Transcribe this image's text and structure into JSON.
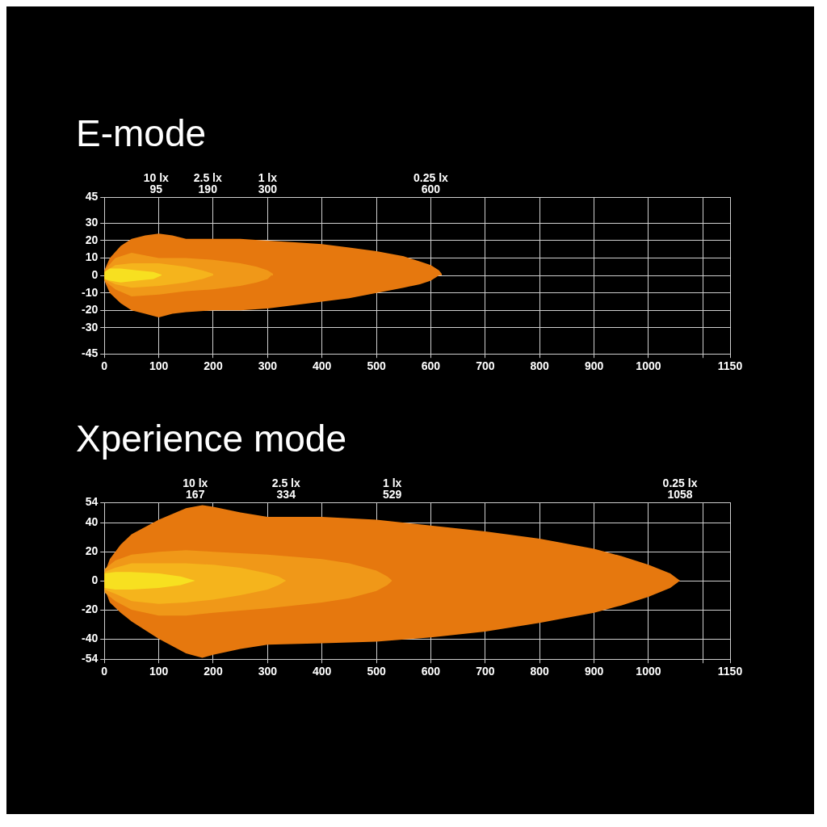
{
  "chart_data": [
    {
      "type": "area",
      "title": "E-mode",
      "xlim": [
        0,
        1150
      ],
      "xticks": [
        0,
        100,
        200,
        300,
        400,
        500,
        600,
        700,
        800,
        900,
        1000,
        {
          "value": 1100,
          "label": null
        },
        1150
      ],
      "ylim": [
        -45,
        45
      ],
      "yticks": [
        -45,
        -30,
        -20,
        -10,
        0,
        10,
        20,
        30,
        45
      ],
      "grid": true,
      "x2lim": [
        0,
        1150
      ],
      "x2ticks": [
        95,
        190,
        300,
        600
      ],
      "annotations": [
        "10 lx",
        "2.5 lx",
        "1 lx",
        "0.25 lx"
      ],
      "series": [
        {
          "color": "#e6780e",
          "x": [
            0,
            10,
            30,
            50,
            75,
            100,
            125,
            150,
            200,
            250,
            300,
            350,
            400,
            450,
            500,
            550,
            580,
            600,
            615,
            620
          ],
          "values": [
            3,
            10,
            17,
            21,
            23,
            24,
            23,
            21,
            21,
            21,
            20,
            19,
            18,
            16,
            14,
            11,
            8,
            6,
            3,
            1
          ]
        },
        {
          "color": "#e6780e",
          "x": [
            0,
            10,
            30,
            50,
            75,
            100,
            125,
            150,
            200,
            250,
            300,
            350,
            400,
            450,
            500,
            550,
            580,
            600,
            615,
            620
          ],
          "values": [
            -3,
            -10,
            -16,
            -20,
            -22,
            -24,
            -22,
            -21,
            -20,
            -20,
            -19,
            -17,
            -15,
            -13,
            -10,
            -7,
            -5,
            -3,
            0,
            1
          ]
        },
        {
          "color": "#f09818",
          "x": [
            0,
            20,
            50,
            100,
            150,
            200,
            250,
            280,
            300,
            310
          ],
          "values": [
            3,
            10,
            13,
            10,
            10,
            9,
            7,
            5,
            3,
            1
          ]
        },
        {
          "color": "#f09818",
          "x": [
            0,
            20,
            50,
            100,
            150,
            200,
            250,
            280,
            300,
            310
          ],
          "values": [
            -3,
            -8,
            -12,
            -11,
            -9,
            -8,
            -6,
            -4,
            -2,
            1
          ]
        },
        {
          "color": "#f5b41c",
          "x": [
            0,
            20,
            50,
            100,
            150,
            180,
            200
          ],
          "values": [
            2,
            6,
            7,
            7,
            5,
            3,
            1
          ]
        },
        {
          "color": "#f5b41c",
          "x": [
            0,
            20,
            50,
            100,
            150,
            180,
            200
          ],
          "values": [
            -2,
            -5,
            -7,
            -6,
            -4,
            -2,
            0
          ]
        },
        {
          "color": "#f7e020",
          "x": [
            0,
            10,
            30,
            60,
            90,
            105
          ],
          "values": [
            2,
            4,
            4,
            3,
            2,
            0.5
          ]
        },
        {
          "color": "#f7e020",
          "x": [
            0,
            10,
            30,
            60,
            90,
            105
          ],
          "values": [
            -2,
            -3,
            -4,
            -3,
            -2,
            0
          ]
        }
      ]
    },
    {
      "type": "area",
      "title": "Xperience mode",
      "xlim": [
        0,
        1150
      ],
      "xticks": [
        0,
        100,
        200,
        300,
        400,
        500,
        600,
        700,
        800,
        900,
        1000,
        {
          "value": 1100,
          "label": null
        },
        1150
      ],
      "ylim": [
        -54,
        54
      ],
      "yticks": [
        -54,
        -40,
        -20,
        0,
        20,
        40,
        54
      ],
      "grid": true,
      "x2lim": [
        0,
        1150
      ],
      "x2ticks": [
        167,
        334,
        529,
        1058
      ],
      "annotations": [
        "10 lx",
        "2.5 lx",
        "1 lx",
        "0.25 lx"
      ],
      "series": [
        {
          "color": "#e6780e",
          "x": [
            0,
            10,
            30,
            50,
            100,
            150,
            180,
            200,
            250,
            300,
            400,
            500,
            600,
            700,
            800,
            900,
            950,
            1000,
            1040,
            1058
          ],
          "values": [
            5,
            15,
            25,
            32,
            42,
            50,
            52,
            51,
            47,
            44,
            44,
            42,
            38,
            34,
            29,
            22,
            17,
            11,
            5,
            0
          ]
        },
        {
          "color": "#e6780e",
          "x": [
            0,
            10,
            30,
            50,
            100,
            150,
            180,
            200,
            250,
            300,
            400,
            500,
            600,
            700,
            800,
            900,
            950,
            1000,
            1040,
            1058
          ],
          "values": [
            -5,
            -15,
            -22,
            -28,
            -40,
            -50,
            -53,
            -51,
            -47,
            -44,
            -43,
            -42,
            -39,
            -35,
            -29,
            -22,
            -17,
            -11,
            -5,
            0
          ]
        },
        {
          "color": "#f09818",
          "x": [
            0,
            20,
            50,
            100,
            150,
            200,
            300,
            400,
            450,
            500,
            520,
            529
          ],
          "values": [
            8,
            14,
            18,
            20,
            21,
            20,
            18,
            15,
            12,
            7,
            3,
            0
          ]
        },
        {
          "color": "#f09818",
          "x": [
            0,
            20,
            50,
            100,
            150,
            200,
            300,
            400,
            450,
            500,
            520,
            529
          ],
          "values": [
            -8,
            -14,
            -20,
            -24,
            -24,
            -22,
            -19,
            -15,
            -12,
            -7,
            -3,
            0
          ]
        },
        {
          "color": "#f5b41c",
          "x": [
            0,
            20,
            50,
            100,
            150,
            200,
            250,
            300,
            320,
            334
          ],
          "values": [
            6,
            9,
            12,
            12,
            12,
            11,
            9,
            5,
            3,
            0
          ]
        },
        {
          "color": "#f5b41c",
          "x": [
            0,
            20,
            50,
            100,
            150,
            200,
            250,
            300,
            320,
            334
          ],
          "values": [
            -6,
            -9,
            -14,
            -16,
            -15,
            -13,
            -10,
            -6,
            -3,
            0
          ]
        },
        {
          "color": "#f7e020",
          "x": [
            0,
            20,
            50,
            100,
            140,
            167
          ],
          "values": [
            5,
            6,
            6,
            5,
            3,
            0
          ]
        },
        {
          "color": "#f7e020",
          "x": [
            0,
            20,
            50,
            100,
            140,
            167
          ],
          "values": [
            -5,
            -6,
            -6,
            -5,
            -3,
            0
          ]
        }
      ]
    }
  ]
}
